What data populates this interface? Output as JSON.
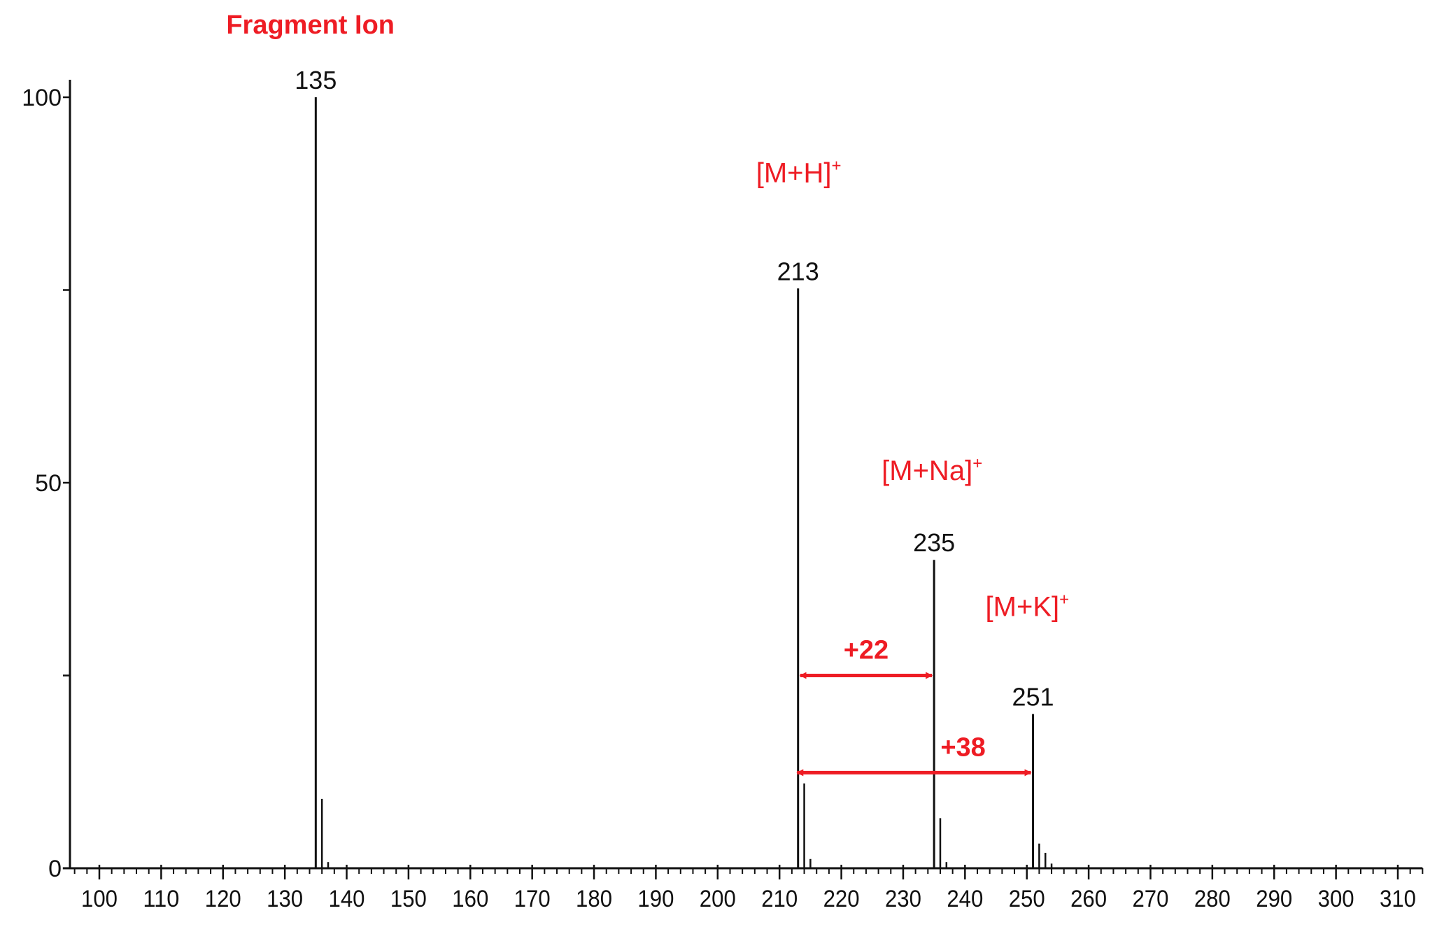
{
  "chart_data": {
    "type": "bar",
    "title": "",
    "xlabel": "",
    "ylabel": "",
    "xlim": [
      95,
      314
    ],
    "ylim": [
      0,
      100
    ],
    "x_ticks_major": [
      100,
      110,
      120,
      130,
      140,
      150,
      160,
      170,
      180,
      190,
      200,
      210,
      220,
      230,
      240,
      250,
      260,
      270,
      280,
      290,
      300,
      310
    ],
    "x_tick_minor_step": 2,
    "y_ticks": [
      0,
      25,
      50,
      75,
      100
    ],
    "y_tick_labels": {
      "0": "0",
      "50": "50",
      "100": "100"
    },
    "grid": false,
    "bar_color": "#111111",
    "annotation_color": "#ee1c24",
    "peaks": [
      {
        "x": 135,
        "y": 100,
        "label": "135"
      },
      {
        "x": 136,
        "y": 9
      },
      {
        "x": 137,
        "y": 0.8
      },
      {
        "x": 213,
        "y": 75.2,
        "label": "213"
      },
      {
        "x": 214,
        "y": 11
      },
      {
        "x": 215,
        "y": 1.2
      },
      {
        "x": 235,
        "y": 40,
        "label": "235"
      },
      {
        "x": 236,
        "y": 6.5
      },
      {
        "x": 237,
        "y": 0.8
      },
      {
        "x": 251,
        "y": 20,
        "label": "251"
      },
      {
        "x": 252,
        "y": 3.2
      },
      {
        "x": 253,
        "y": 2
      },
      {
        "x": 254,
        "y": 0.6
      }
    ],
    "annotations": [
      {
        "text": "Fragment Ion",
        "peak": 135,
        "bold": true
      },
      {
        "text": "[M+H]",
        "sup": "+",
        "peak": 213
      },
      {
        "text": "[M+Na]",
        "sup": "+",
        "peak": 235
      },
      {
        "text": "[M+K]",
        "sup": "+",
        "peak": 251
      }
    ],
    "arrows": [
      {
        "label": "+22",
        "from": 213,
        "to": 235,
        "y": 25
      },
      {
        "label": "+38",
        "from": 212.5,
        "to": 251,
        "y": 12.4
      }
    ]
  }
}
